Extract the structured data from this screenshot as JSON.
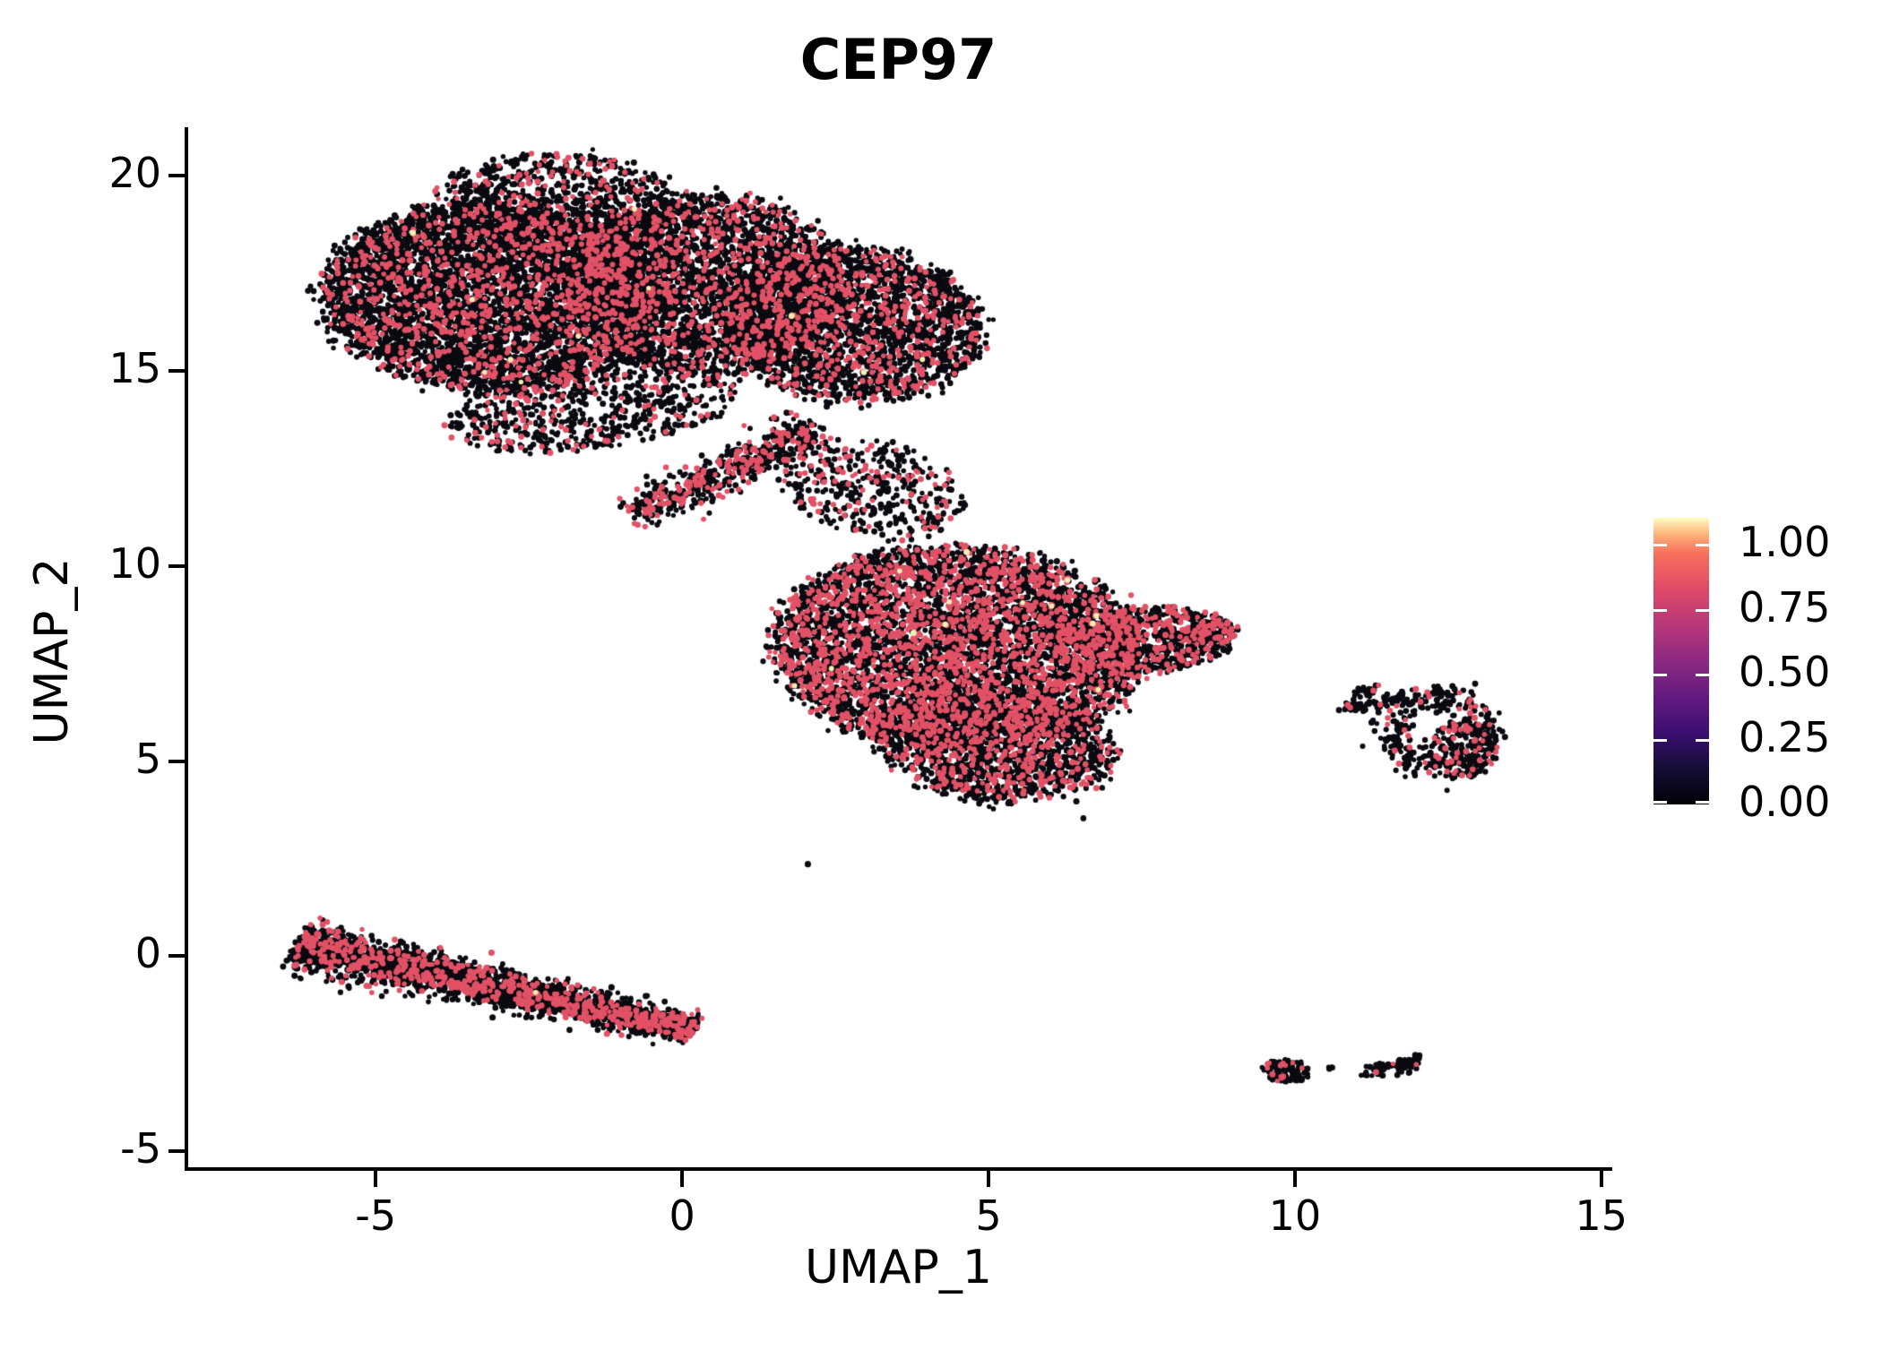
{
  "chart": {
    "title": "CEP97"
  },
  "chart_data": {
    "type": "scatter",
    "title": "CEP97",
    "xlabel": "UMAP_1",
    "ylabel": "UMAP_2",
    "xlim": [
      -8.06,
      15.12
    ],
    "ylim": [
      -5.46,
      21.25
    ],
    "x_ticks": [
      -5,
      0,
      5,
      10,
      15
    ],
    "x_tick_labels": [
      "-5",
      "0",
      "5",
      "10",
      "15"
    ],
    "y_ticks": [
      -5,
      0,
      5,
      10,
      15,
      20
    ],
    "y_tick_labels": [
      "-5",
      "0",
      "5",
      "10",
      "15",
      "20"
    ],
    "grid": false,
    "legend_position": "right",
    "marker_diameter_px": 6.2,
    "point_colors": {
      "zero_expression": "#0A0A10",
      "mid_expression": "#E25166",
      "high_expression": "#F5EFB5"
    },
    "colorbar": {
      "tick_values": [
        1.0,
        0.75,
        0.5,
        0.25,
        0.0
      ],
      "tick_labels": [
        "1.00",
        "0.75",
        "0.50",
        "0.25",
        "0.00"
      ],
      "vmax": 1.104,
      "cmap": "magma",
      "gradient_stops": [
        "#000004",
        "#140e36",
        "#3b0f70",
        "#641a80",
        "#8c2981",
        "#b73779",
        "#de4968",
        "#f76f5c",
        "#feb078",
        "#fcfdbf"
      ]
    },
    "clusters": [
      {
        "id": "top-left-lobe",
        "shape": "ellipse",
        "cx": -3.05,
        "cy": 16.9,
        "rx": 2.8,
        "ry": 2.4,
        "rot": -8,
        "n": 5200,
        "pink": 0.16,
        "cream": 0.0015
      },
      {
        "id": "top-cap",
        "shape": "ellipse",
        "cx": -2.0,
        "cy": 19.3,
        "rx": 2.0,
        "ry": 1.3,
        "rot": -5,
        "n": 900,
        "pink": 0.14,
        "cream": 0.001
      },
      {
        "id": "top-mid-lobe",
        "shape": "ellipse",
        "cx": 0.4,
        "cy": 17.2,
        "rx": 2.2,
        "ry": 2.3,
        "rot": 0,
        "n": 3200,
        "pink": 0.18,
        "cream": 0.001
      },
      {
        "id": "top-right-lobe",
        "shape": "ellipse",
        "cx": 2.8,
        "cy": 16.2,
        "rx": 2.1,
        "ry": 1.95,
        "rot": -18,
        "n": 2600,
        "pink": 0.18,
        "cream": 0.001
      },
      {
        "id": "top-bottom-fringe",
        "shape": "ellipse",
        "cx": -1.5,
        "cy": 14.0,
        "rx": 2.4,
        "ry": 1.0,
        "rot": 12,
        "n": 650,
        "pink": 0.18,
        "cream": 0
      },
      {
        "id": "bridge-band",
        "shape": "band",
        "x1": -0.8,
        "y1": 11.3,
        "x2": 2.2,
        "y2": 13.5,
        "w": 0.5,
        "taper": 0,
        "n": 560,
        "pink": 0.26,
        "cream": 0
      },
      {
        "id": "bridge-scatter",
        "shape": "ellipse",
        "cx": 3.1,
        "cy": 12.0,
        "rx": 1.6,
        "ry": 1.15,
        "rot": -25,
        "n": 420,
        "pink": 0.22,
        "cream": 0
      },
      {
        "id": "mid-main",
        "shape": "ellipse",
        "cx": 4.5,
        "cy": 7.9,
        "rx": 3.0,
        "ry": 2.6,
        "rot": -8,
        "n": 5600,
        "pink": 0.3,
        "cream": 0.002
      },
      {
        "id": "mid-right-tip",
        "shape": "ellipse",
        "cx": 7.5,
        "cy": 8.1,
        "rx": 1.5,
        "ry": 0.85,
        "rot": 6,
        "n": 800,
        "pink": 0.26,
        "cream": 0
      },
      {
        "id": "mid-tip-end",
        "shape": "ellipse",
        "cx": 8.65,
        "cy": 8.3,
        "rx": 0.5,
        "ry": 0.3,
        "rot": 8,
        "n": 90,
        "pink": 0.35,
        "cream": 0
      },
      {
        "id": "mid-bottom",
        "shape": "ellipse",
        "cx": 5.1,
        "cy": 5.4,
        "rx": 2.0,
        "ry": 1.35,
        "rot": -14,
        "n": 1400,
        "pink": 0.22,
        "cream": 0
      },
      {
        "id": "mid-bottom-fringe",
        "shape": "ellipse",
        "cx": 4.9,
        "cy": 4.4,
        "rx": 0.9,
        "ry": 0.5,
        "rot": -10,
        "n": 70,
        "pink": 0.12,
        "cream": 0
      },
      {
        "id": "stray-dots",
        "shape": "points",
        "pts": [
          [
            5.0,
            3.85
          ],
          [
            5.1,
            3.78
          ],
          [
            2.1,
            2.4
          ],
          [
            6.6,
            3.5
          ]
        ],
        "pink": 0,
        "cream": 0
      },
      {
        "id": "donut-ring",
        "shape": "ring",
        "cx": 12.35,
        "cy": 5.75,
        "r": 0.8,
        "sigma": 0.17,
        "n": 330,
        "pink": 0.13,
        "cream": 0
      },
      {
        "id": "donut-fill",
        "shape": "ellipse",
        "cx": 12.75,
        "cy": 5.3,
        "rx": 0.55,
        "ry": 0.75,
        "rot": 0,
        "n": 160,
        "pink": 0.16,
        "cream": 0
      },
      {
        "id": "donut-arm",
        "shape": "band",
        "x1": 10.8,
        "y1": 6.35,
        "x2": 11.85,
        "y2": 6.6,
        "w": 0.14,
        "taper": 0,
        "n": 70,
        "pink": 0.06,
        "cream": 0
      },
      {
        "id": "donut-arm2",
        "shape": "band",
        "x1": 10.95,
        "y1": 6.75,
        "x2": 11.35,
        "y2": 6.8,
        "w": 0.1,
        "taper": 0,
        "n": 22,
        "pink": 0.05,
        "cream": 0
      },
      {
        "id": "bottom-band",
        "shape": "band",
        "x1": -6.3,
        "y1": 0.3,
        "x2": 0.2,
        "y2": -1.9,
        "w": 0.58,
        "taper": 0.5,
        "n": 2900,
        "pink": 0.2,
        "cream": 0.0007
      },
      {
        "id": "br-blob",
        "shape": "ellipse",
        "cx": 9.87,
        "cy": -2.95,
        "rx": 0.4,
        "ry": 0.28,
        "rot": -10,
        "n": 120,
        "pink": 0.1,
        "cream": 0
      },
      {
        "id": "br-dot",
        "shape": "ellipse",
        "cx": 10.58,
        "cy": -2.87,
        "rx": 0.08,
        "ry": 0.07,
        "rot": 0,
        "n": 4,
        "pink": 0,
        "cream": 0
      },
      {
        "id": "br-chain",
        "shape": "band",
        "x1": 11.05,
        "y1": -2.98,
        "x2": 12.0,
        "y2": -2.72,
        "w": 0.14,
        "taper": 0,
        "n": 75,
        "pink": 0.15,
        "cream": 0
      }
    ]
  }
}
